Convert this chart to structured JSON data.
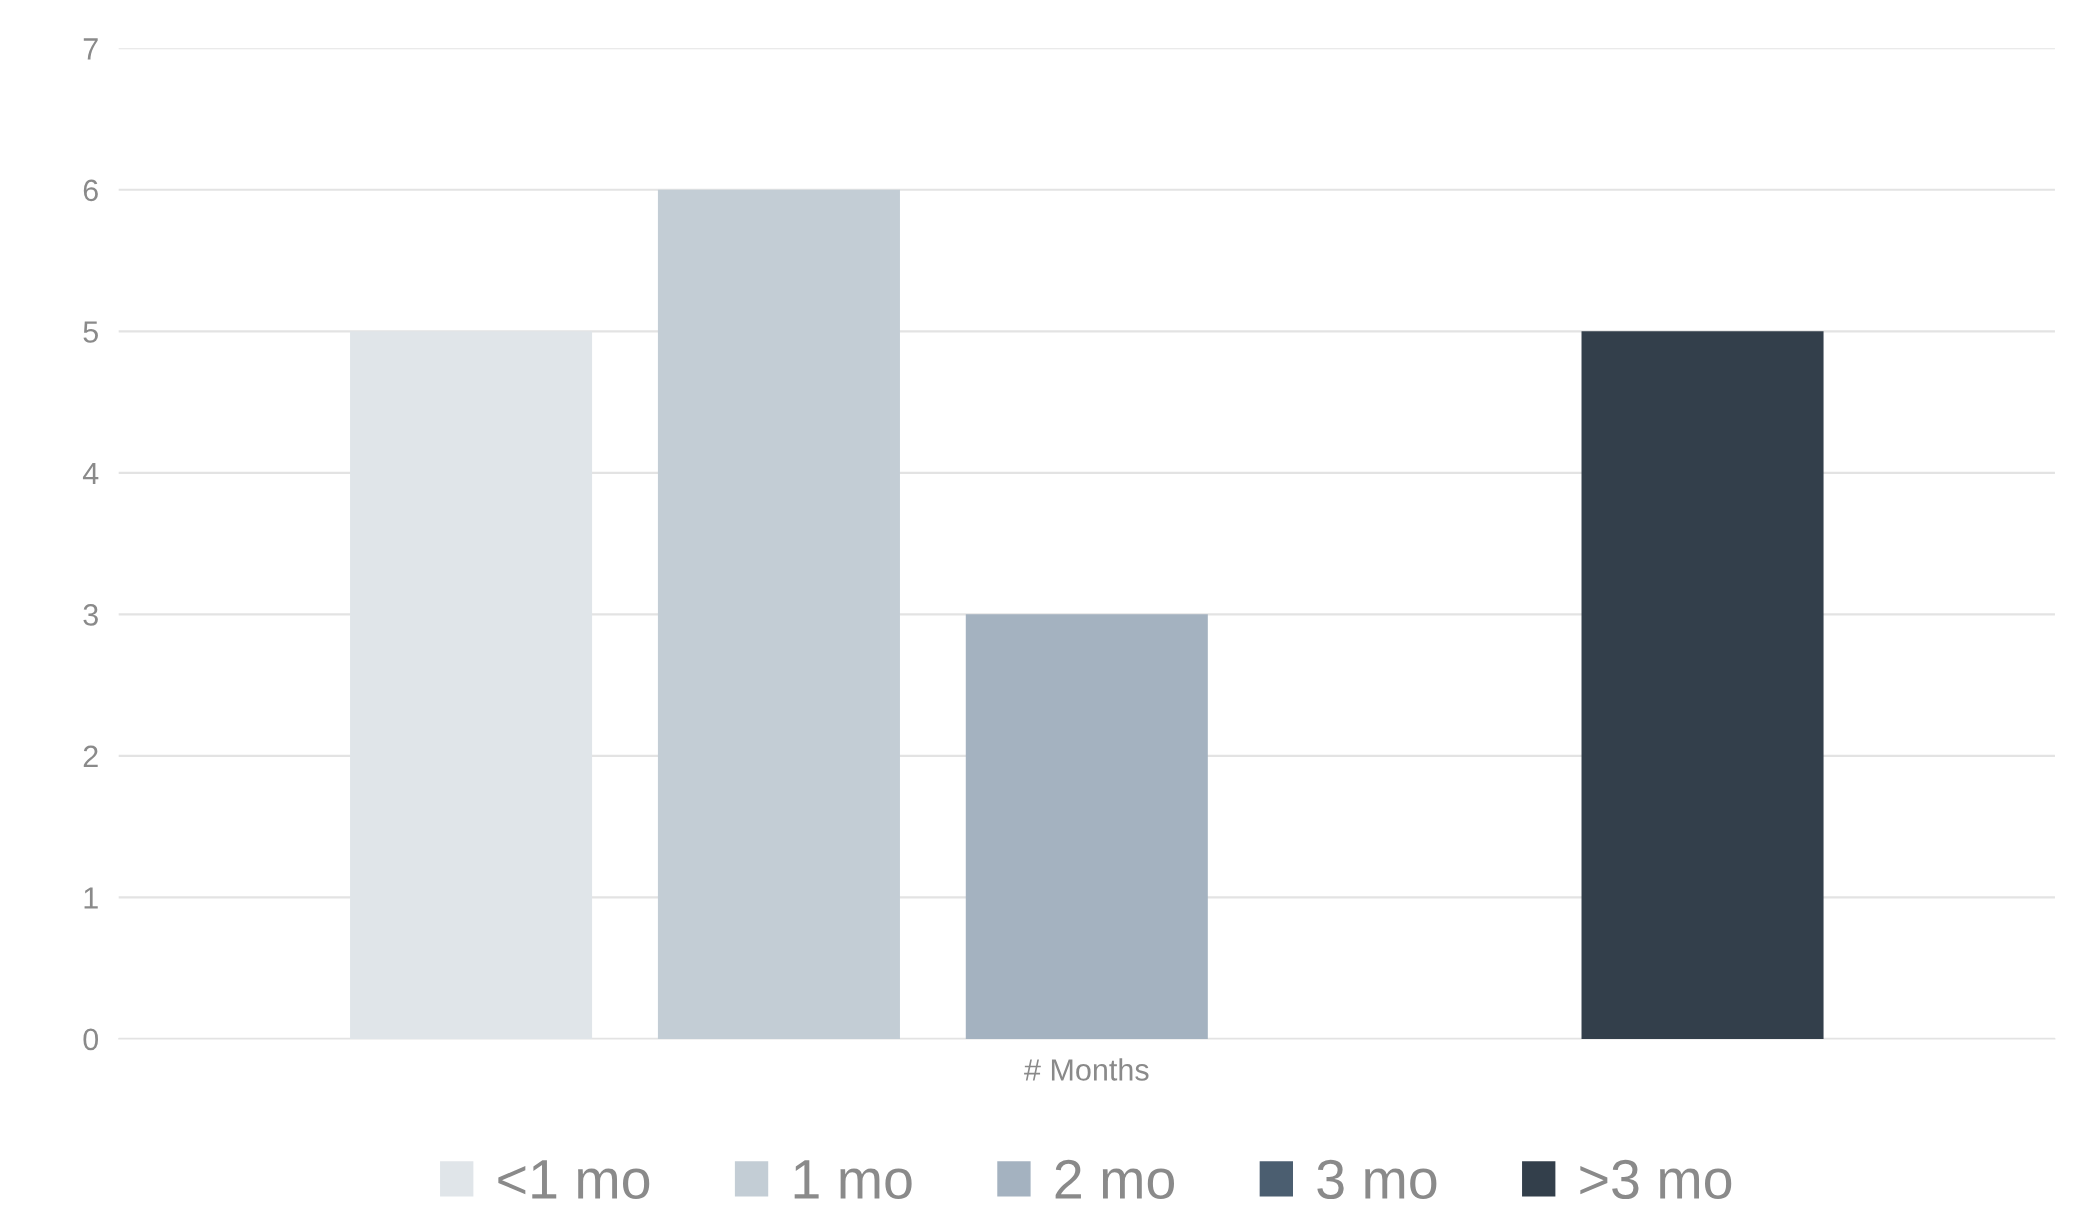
{
  "chart_data": {
    "type": "bar",
    "categories": [
      "# Months"
    ],
    "series": [
      {
        "name": "<1 mo",
        "color": "#e0e5e9",
        "values": [
          5
        ]
      },
      {
        "name": "1 mo",
        "color": "#c3cdd5",
        "values": [
          6
        ]
      },
      {
        "name": "2 mo",
        "color": "#a4b2c0",
        "values": [
          3
        ]
      },
      {
        "name": "3 mo",
        "color": "#4b5e70",
        "values": [
          0
        ]
      },
      {
        "name": ">3 mo",
        "color": "#333f4b",
        "values": [
          5
        ]
      }
    ],
    "ylim": [
      0,
      7
    ],
    "yticks": [
      0,
      1,
      2,
      3,
      4,
      5,
      6,
      7
    ],
    "grid": "y",
    "legend": "bottom"
  }
}
